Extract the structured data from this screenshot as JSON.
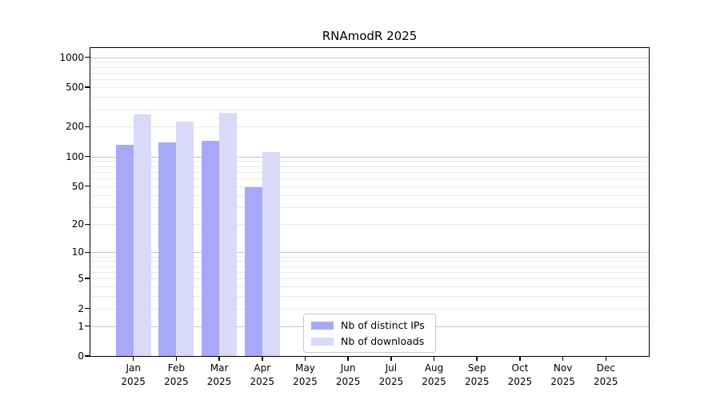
{
  "chart_data": {
    "type": "bar",
    "title": "RNAmodR 2025",
    "year_label": "2025",
    "categories": [
      "Jan",
      "Feb",
      "Mar",
      "Apr",
      "May",
      "Jun",
      "Jul",
      "Aug",
      "Sep",
      "Oct",
      "Nov",
      "Dec"
    ],
    "series": [
      {
        "name": "Nb of distinct IPs",
        "color": "#a8a8f8",
        "values": [
          131,
          138,
          143,
          49,
          null,
          null,
          null,
          null,
          null,
          null,
          null,
          null
        ]
      },
      {
        "name": "Nb of downloads",
        "color": "#d9d9f8",
        "values": [
          264,
          224,
          276,
          112,
          null,
          null,
          null,
          null,
          null,
          null,
          null,
          null
        ]
      }
    ],
    "y_scale": "log1p",
    "ylim": [
      0,
      1240
    ],
    "y_ticks": [
      0,
      1,
      2,
      5,
      10,
      20,
      50,
      100,
      200,
      500,
      1000
    ],
    "major_gridlines": [
      1,
      10,
      100,
      1000
    ],
    "minor_gridlines": [
      2,
      3,
      4,
      5,
      6,
      7,
      8,
      9,
      20,
      30,
      40,
      50,
      60,
      70,
      80,
      90,
      200,
      300,
      400,
      500,
      600,
      700,
      800,
      900
    ],
    "legend_position": "lower center",
    "colors": {
      "major_grid": "#c7c7c7",
      "minor_grid": "#eaeaea",
      "spine": "#000000",
      "text": "#000000",
      "background": "#ffffff"
    }
  }
}
